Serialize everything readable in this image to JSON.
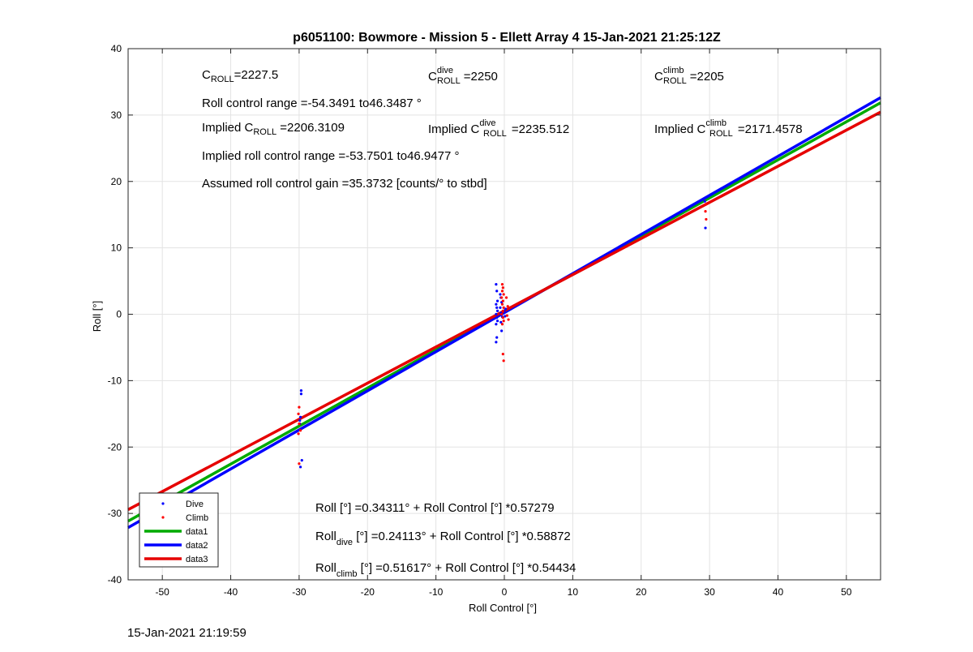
{
  "footer_timestamp": "15-Jan-2021 21:19:59",
  "annotations": {
    "c_roll": {
      "base": "C",
      "sub": "ROLL",
      "value": "=2227.5"
    },
    "c_roll_dive": {
      "base": "C",
      "sup": "dive",
      "sub": "ROLL",
      "value": "=2250"
    },
    "c_roll_climb": {
      "base": "C",
      "sup": "climb",
      "sub": "ROLL",
      "value": "=2205"
    },
    "roll_range": "Roll control range =-54.3491 to46.3487 °",
    "implied_c_roll": {
      "prefix": "Implied C",
      "sub": "ROLL",
      "value": " =2206.3109"
    },
    "implied_c_roll_dive": {
      "prefix": "Implied C",
      "sup": "dive",
      "sub": "ROLL",
      "value": " =2235.512"
    },
    "implied_c_roll_climb": {
      "prefix": "Implied C",
      "sup": "climb",
      "sub": "ROLL",
      "value": " =2171.4578"
    },
    "implied_range": "Implied roll control range =-53.7501 to46.9477 °",
    "gain": "Assumed roll control gain =35.3732 [counts/° to stbd]",
    "fit_all": "Roll [°] =0.34311° + Roll Control [°] *0.57279",
    "fit_dive": {
      "base": "Roll",
      "sub": "dive",
      "rest": " [°] =0.24113° + Roll Control [°] *0.58872"
    },
    "fit_climb": {
      "base": "Roll",
      "sub": "climb",
      "rest": " [°] =0.51617° + Roll Control [°] *0.54434"
    }
  },
  "chart_data": {
    "type": "scatter",
    "title": "p6051100: Bowmore - Mission 5 - Ellett Array 4 15-Jan-2021 21:25:12Z",
    "xlabel": "Roll Control [°]",
    "ylabel": "Roll [°]",
    "xlim": [
      -55,
      55
    ],
    "ylim": [
      -40,
      40
    ],
    "xticks": [
      -50,
      -40,
      -30,
      -20,
      -10,
      0,
      10,
      20,
      30,
      40,
      50
    ],
    "yticks": [
      -40,
      -30,
      -20,
      -10,
      0,
      10,
      20,
      30,
      40
    ],
    "grid": true,
    "legend_position": "bottom-left",
    "series": [
      {
        "name": "Dive",
        "kind": "points",
        "color": "#0000ff",
        "points": [
          [
            -29.7,
            -11.5
          ],
          [
            -29.7,
            -12.0
          ],
          [
            -29.8,
            -15.5
          ],
          [
            -29.9,
            -16.5
          ],
          [
            -29.6,
            -22.0
          ],
          [
            -29.8,
            -23.0
          ],
          [
            -29.9,
            -16.0
          ],
          [
            -1.2,
            4.5
          ],
          [
            -1.1,
            3.5
          ],
          [
            -1.0,
            2.0
          ],
          [
            -1.2,
            1.5
          ],
          [
            -1.1,
            1.0
          ],
          [
            -1.0,
            0.5
          ],
          [
            -1.2,
            0.0
          ],
          [
            -1.1,
            -0.5
          ],
          [
            -1.0,
            -1.0
          ],
          [
            -1.2,
            -1.5
          ],
          [
            -1.1,
            -3.5
          ],
          [
            -1.2,
            -4.2
          ],
          [
            -0.6,
            3.0
          ],
          [
            -0.5,
            2.5
          ],
          [
            -0.4,
            1.8
          ],
          [
            -0.6,
            1.0
          ],
          [
            -0.5,
            0.2
          ],
          [
            -0.3,
            -0.4
          ],
          [
            -0.5,
            -1.2
          ],
          [
            -0.4,
            -2.5
          ],
          [
            0.0,
            0.5
          ],
          [
            0.1,
            -0.3
          ],
          [
            0.2,
            0.8
          ],
          [
            29.4,
            13.0
          ],
          [
            29.3,
            17.0
          ]
        ]
      },
      {
        "name": "Climb",
        "kind": "points",
        "color": "#ff0000",
        "points": [
          [
            -30.0,
            -14.0
          ],
          [
            -30.1,
            -15.0
          ],
          [
            -30.0,
            -16.5
          ],
          [
            -30.1,
            -18.0
          ],
          [
            -30.0,
            -22.5
          ],
          [
            -29.8,
            -17.5
          ],
          [
            -0.3,
            4.5
          ],
          [
            -0.2,
            4.0
          ],
          [
            -0.3,
            3.5
          ],
          [
            -0.1,
            3.0
          ],
          [
            -0.4,
            2.5
          ],
          [
            -0.2,
            2.0
          ],
          [
            -0.3,
            1.5
          ],
          [
            -0.1,
            1.0
          ],
          [
            -0.2,
            0.5
          ],
          [
            -0.4,
            0.0
          ],
          [
            -0.2,
            -0.5
          ],
          [
            -0.1,
            -1.0
          ],
          [
            -0.3,
            -1.5
          ],
          [
            -0.2,
            -6.0
          ],
          [
            -0.1,
            -7.0
          ],
          [
            0.3,
            2.5
          ],
          [
            0.5,
            1.2
          ],
          [
            0.6,
            -0.8
          ],
          [
            0.4,
            -0.2
          ],
          [
            29.4,
            15.5
          ],
          [
            29.5,
            14.3
          ],
          [
            29.4,
            16.5
          ]
        ]
      },
      {
        "name": "data1",
        "kind": "line",
        "color": "#00aa00",
        "intercept": 0.34311,
        "slope": 0.57279
      },
      {
        "name": "data2",
        "kind": "line",
        "color": "#0000ff",
        "intercept": 0.24113,
        "slope": 0.58872
      },
      {
        "name": "data3",
        "kind": "line",
        "color": "#e60000",
        "intercept": 0.51617,
        "slope": 0.54434
      }
    ]
  }
}
